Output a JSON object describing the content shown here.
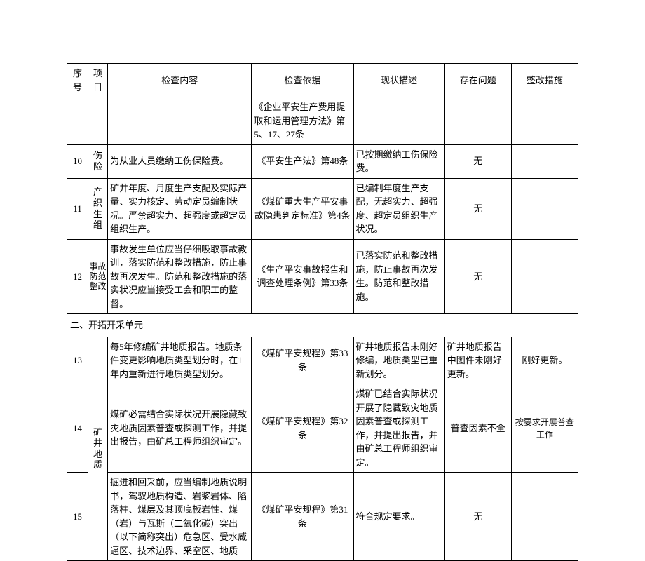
{
  "headers": {
    "seq": "序号",
    "proj": "项目",
    "content": "检查内容",
    "basis": "检查依据",
    "status": "现状描述",
    "problem": "存在问题",
    "measure": "整改措施"
  },
  "rows": [
    {
      "seq": "",
      "proj": "",
      "content": "",
      "basis": "《企业平安生产费用提取和运用管理方法》第5、17、27条",
      "status": "",
      "problem": "",
      "measure": ""
    },
    {
      "seq": "10",
      "proj": "伤险",
      "content": "为从业人员缴纳工伤保险费。",
      "basis": "《平安生产法》第48条",
      "status": "已按期缴纳工伤保险费。",
      "problem": "无",
      "measure": ""
    },
    {
      "seq": "11",
      "proj": "产织生组",
      "content": "矿井年度、月度生产支配及实际产量、实力核定、劳动定员编制状况。严禁超实力、超强度或超定员组织生产。",
      "basis": "《煤矿重大生产平安事故隐患判定标准》第4条",
      "status": "已编制年度生产支配，无超实力、超强度、超定员组织生产状况。",
      "problem": "无",
      "measure": ""
    },
    {
      "seq": "12",
      "proj": "事故防范整改",
      "content": "事故发生单位应当仔细吸取事故教训，落实防范和整改措施，防止事故再次发生。防范和整改措施的落实状况应当接受工会和职工的监督。",
      "basis": "《生产平安事故报告和调查处理条例》第33条",
      "status": "已落实防范和整改措施，防止事故再次发生。防范和整改措施。",
      "problem": "无",
      "measure": ""
    }
  ],
  "section2": "二、开拓开采单元",
  "geology_label": "矿井地质",
  "rows2": [
    {
      "seq": "13",
      "content": "每5年修编矿井地质报告。地质条件变更影响地质类型划分时，在1年内重新进行地质类型划分。",
      "basis": "《煤矿平安规程》第33条",
      "status": "矿井地质报告未刚好修编，地质类型已重新划分。",
      "problem": "矿井地质报告中图件未刚好更新。",
      "measure": "刚好更新。"
    },
    {
      "seq": "14",
      "content": "煤矿必需结合实际状况开展隐藏致灾地质因素普查或探测工作，并提出报告，由矿总工程师组织审定。",
      "basis": "《煤矿平安规程》第32条",
      "status": "煤矿已结合实际状况开展了隐藏致灾地质因素普查或探测工作，并提出报告，并由矿总工程师组织审定。",
      "problem": "普查因素不全",
      "measure": "按要求开展普查工作"
    },
    {
      "seq": "15",
      "content": "掘进和回采前，应当编制地质说明书，驾驭地质构造、岩浆岩体、陷落柱、煤层及其顶底板岩性、煤（岩）与瓦斯（二氧化碳）突出（以下简称突出）危急区、受水威逼区、技术边界、采空区、地质",
      "basis": "《煤矿平安规程》第31条",
      "status": "符合规定要求。",
      "problem": "无",
      "measure": ""
    }
  ]
}
